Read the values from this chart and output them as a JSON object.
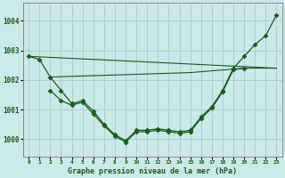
{
  "title": "Graphe pression niveau de la mer (hPa)",
  "background_color": "#cce8ea",
  "grid_color": "#aacccc",
  "line_color": "#1a5c1a",
  "xlim": [
    -0.5,
    23.5
  ],
  "ylim": [
    999.4,
    1004.6
  ],
  "yticks": [
    1000,
    1001,
    1002,
    1003,
    1004
  ],
  "xtick_labels": [
    "0",
    "1",
    "2",
    "3",
    "4",
    "5",
    "6",
    "7",
    "8",
    "9",
    "10",
    "11",
    "12",
    "13",
    "14",
    "15",
    "16",
    "17",
    "18",
    "19",
    "20",
    "21",
    "22",
    "23"
  ],
  "curve1_x": [
    0,
    1,
    2,
    3,
    4,
    5,
    6,
    7,
    8,
    9,
    10,
    11,
    12,
    13,
    14,
    15,
    16,
    17,
    18,
    19,
    20,
    21,
    22,
    23
  ],
  "curve1_y": [
    1002.8,
    1002.7,
    1002.1,
    1001.65,
    1001.2,
    1001.3,
    1000.95,
    1000.5,
    1000.15,
    999.95,
    1000.3,
    1000.3,
    1000.35,
    1000.3,
    1000.25,
    1000.3,
    1000.75,
    1001.1,
    1001.65,
    1002.4,
    1002.8,
    1003.2,
    1003.5,
    1004.2
  ],
  "line2_x": [
    0,
    23
  ],
  "line2_y": [
    1002.8,
    1002.4
  ],
  "line3_x": [
    2,
    15,
    20,
    23
  ],
  "line3_y": [
    1002.1,
    1002.25,
    1002.4,
    1002.4
  ],
  "curve4_x": [
    2,
    3,
    4,
    5,
    6,
    7,
    8,
    9,
    10,
    11,
    12,
    13,
    14,
    15,
    16,
    17,
    18,
    19,
    20
  ],
  "curve4_y": [
    1001.65,
    1001.3,
    1001.15,
    1001.25,
    1000.85,
    1000.45,
    1000.1,
    999.9,
    1000.25,
    1000.25,
    1000.3,
    1000.25,
    1000.2,
    1000.25,
    1000.7,
    1001.05,
    1001.6,
    1002.35,
    1002.4
  ]
}
